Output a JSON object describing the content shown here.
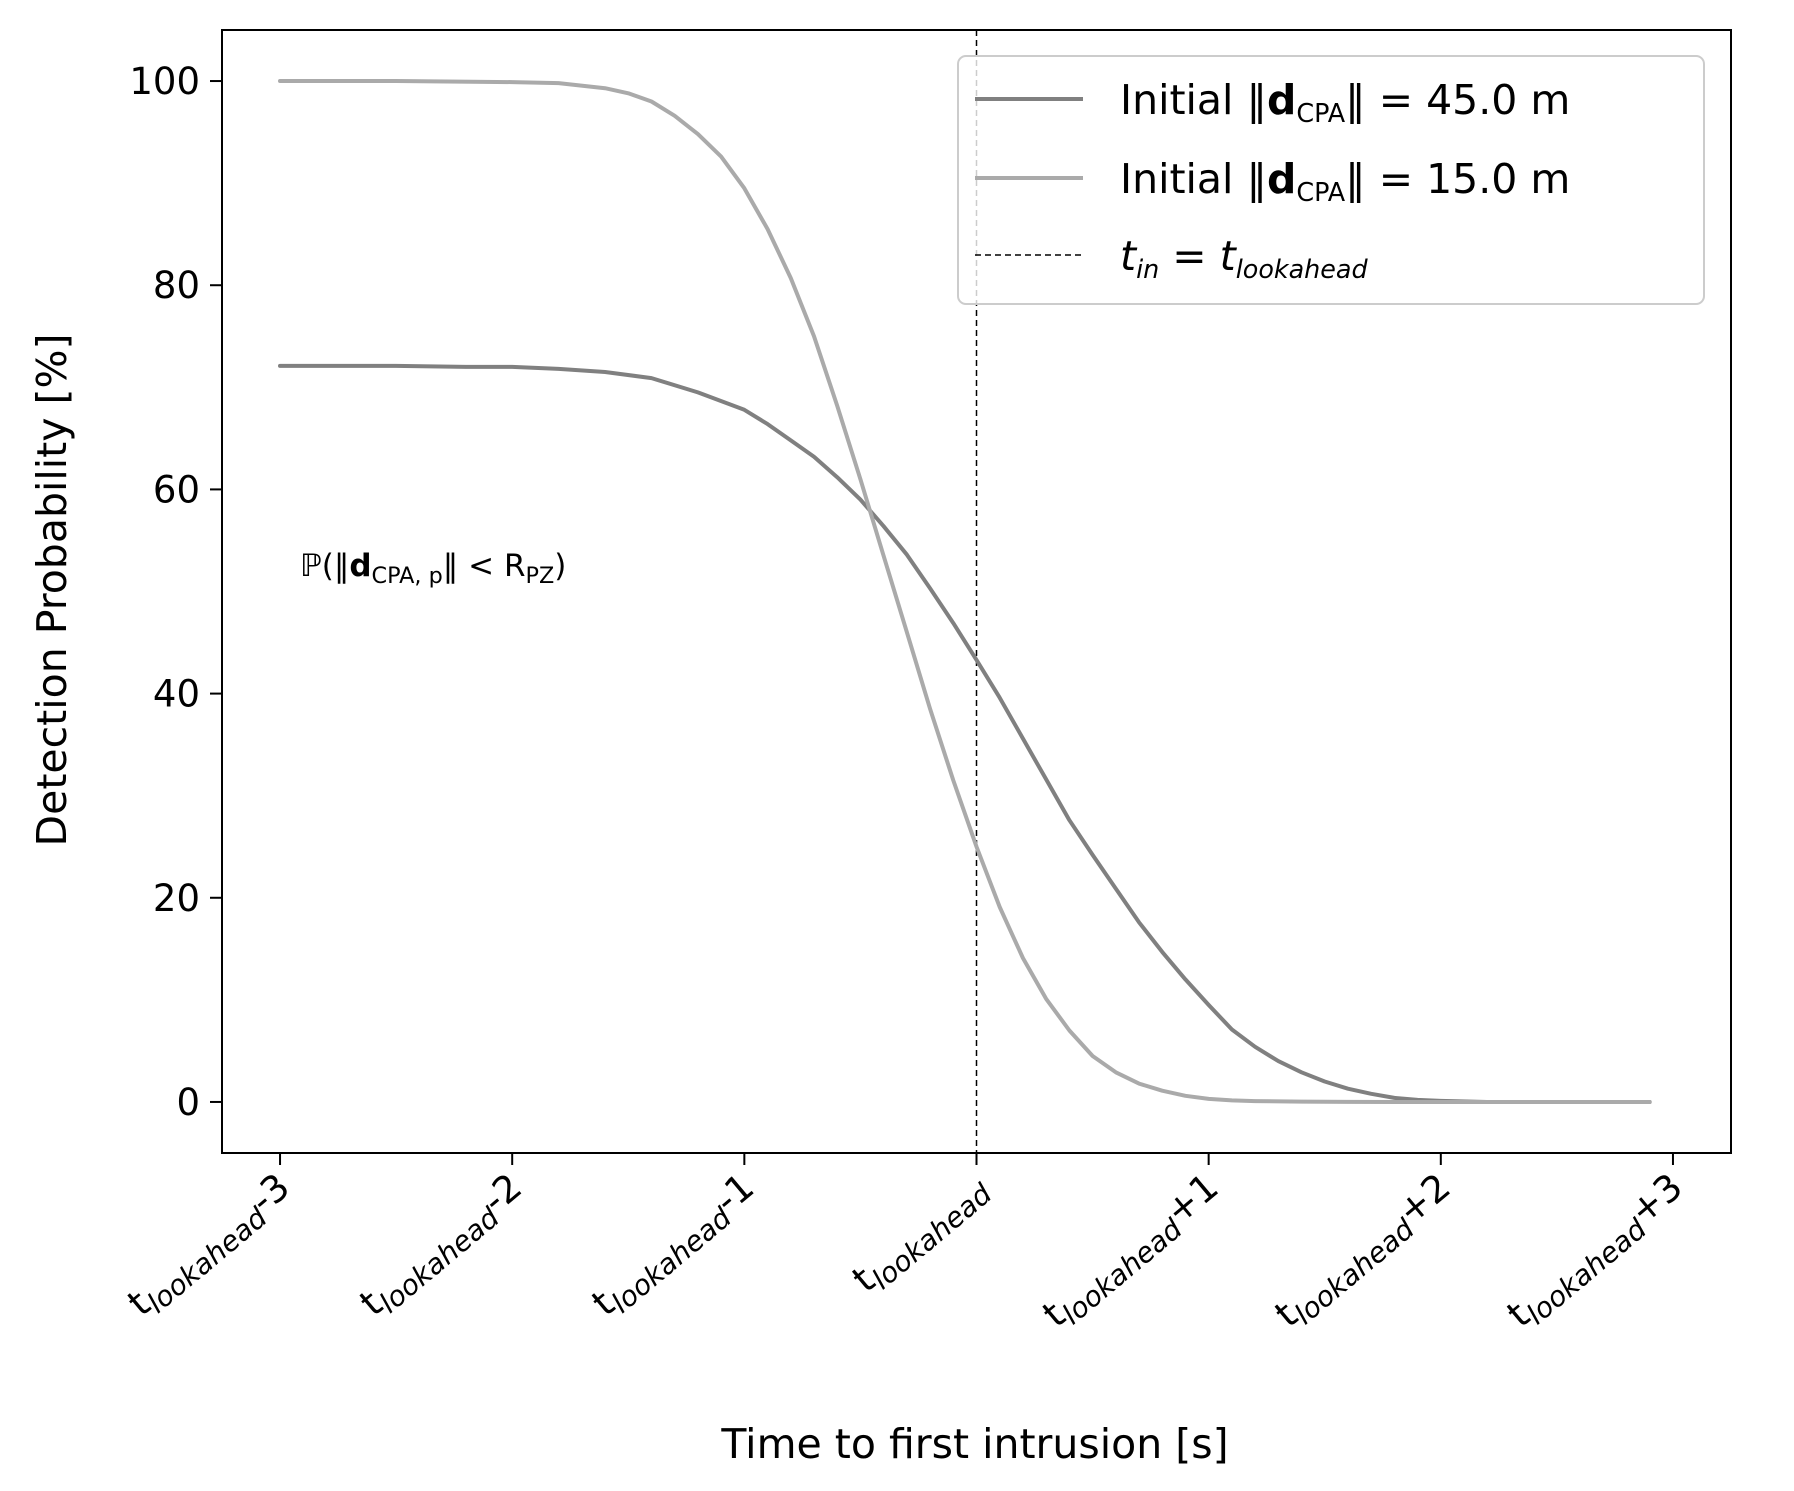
{
  "chart_data": {
    "type": "line",
    "title": "",
    "xlabel": "Time to first intrusion [s]",
    "ylabel": "Detection Probability [%]",
    "xlim": [
      -3.25,
      3.25
    ],
    "ylim": [
      -5,
      105
    ],
    "xticks": [
      -3,
      -2,
      -1,
      0,
      1,
      2,
      3
    ],
    "xtick_labels": [
      {
        "base": "t",
        "sub": "lookahead",
        "suffix": "-3"
      },
      {
        "base": "t",
        "sub": "lookahead",
        "suffix": "-2"
      },
      {
        "base": "t",
        "sub": "lookahead",
        "suffix": "-1"
      },
      {
        "base": "t",
        "sub": "lookahead",
        "suffix": ""
      },
      {
        "base": "t",
        "sub": "lookahead",
        "suffix": "+1"
      },
      {
        "base": "t",
        "sub": "lookahead",
        "suffix": "+2"
      },
      {
        "base": "t",
        "sub": "lookahead",
        "suffix": "+3"
      }
    ],
    "yticks": [
      0,
      20,
      40,
      60,
      80,
      100
    ],
    "ytick_labels": [
      "0",
      "20",
      "40",
      "60",
      "80",
      "100"
    ],
    "grid": false,
    "legend_position": "top-right",
    "annotation": {
      "prefix": "ℙ(‖",
      "bold": "d",
      "sub": "CPA, p",
      "middle": "‖ < R",
      "sub2": "PZ",
      "suffix": ")"
    },
    "series": [
      {
        "name": "Initial ‖dCPA‖ = 45.0 m",
        "legend": {
          "pre": "Initial ‖",
          "bold": "d",
          "sub": "CPA",
          "post": "‖ = 45.0 m"
        },
        "color": "#808080",
        "style": "solid",
        "x": [
          -3.0,
          -2.5,
          -2.2,
          -2.0,
          -1.8,
          -1.6,
          -1.4,
          -1.2,
          -1.0,
          -0.9,
          -0.8,
          -0.7,
          -0.6,
          -0.5,
          -0.4,
          -0.3,
          -0.2,
          -0.1,
          0.0,
          0.1,
          0.2,
          0.3,
          0.4,
          0.5,
          0.6,
          0.7,
          0.8,
          0.9,
          1.0,
          1.1,
          1.2,
          1.3,
          1.4,
          1.5,
          1.6,
          1.7,
          1.8,
          1.9,
          2.0,
          2.2,
          2.5,
          2.9
        ],
        "y": [
          72.1,
          72.1,
          72.0,
          72.0,
          71.8,
          71.5,
          70.9,
          69.5,
          67.8,
          66.4,
          64.8,
          63.2,
          61.2,
          59.0,
          56.4,
          53.6,
          50.3,
          46.9,
          43.3,
          39.6,
          35.6,
          31.6,
          27.6,
          24.2,
          20.9,
          17.6,
          14.7,
          12.0,
          9.5,
          7.1,
          5.4,
          4.0,
          2.9,
          2.0,
          1.3,
          0.8,
          0.4,
          0.2,
          0.1,
          0.0,
          0.0,
          0.0
        ]
      },
      {
        "name": "Initial ‖dCPA‖ = 15.0 m",
        "legend": {
          "pre": "Initial ‖",
          "bold": "d",
          "sub": "CPA",
          "post": "‖ = 15.0 m"
        },
        "color": "#aaaaaa",
        "style": "solid",
        "x": [
          -3.0,
          -2.5,
          -2.0,
          -1.8,
          -1.6,
          -1.5,
          -1.4,
          -1.3,
          -1.2,
          -1.1,
          -1.0,
          -0.9,
          -0.8,
          -0.7,
          -0.6,
          -0.5,
          -0.4,
          -0.3,
          -0.2,
          -0.1,
          0.0,
          0.1,
          0.2,
          0.3,
          0.4,
          0.5,
          0.6,
          0.7,
          0.8,
          0.9,
          1.0,
          1.1,
          1.2,
          1.4,
          1.6,
          2.0,
          2.5,
          2.9
        ],
        "y": [
          100.0,
          100.0,
          99.9,
          99.8,
          99.3,
          98.8,
          98.0,
          96.6,
          94.8,
          92.6,
          89.5,
          85.5,
          80.7,
          75.0,
          68.2,
          61.0,
          53.5,
          46.0,
          38.5,
          31.5,
          25.0,
          19.1,
          14.1,
          10.1,
          7.0,
          4.5,
          2.9,
          1.8,
          1.1,
          0.6,
          0.3,
          0.15,
          0.08,
          0.03,
          0.01,
          0.0,
          0.0,
          0.0
        ]
      }
    ],
    "reference_line": {
      "x": 0,
      "color": "#000000",
      "style": "dashed",
      "legend": {
        "t": "t",
        "sub1": "in",
        "eq": " = ",
        "t2": "t",
        "sub2": "lookahead"
      }
    }
  }
}
